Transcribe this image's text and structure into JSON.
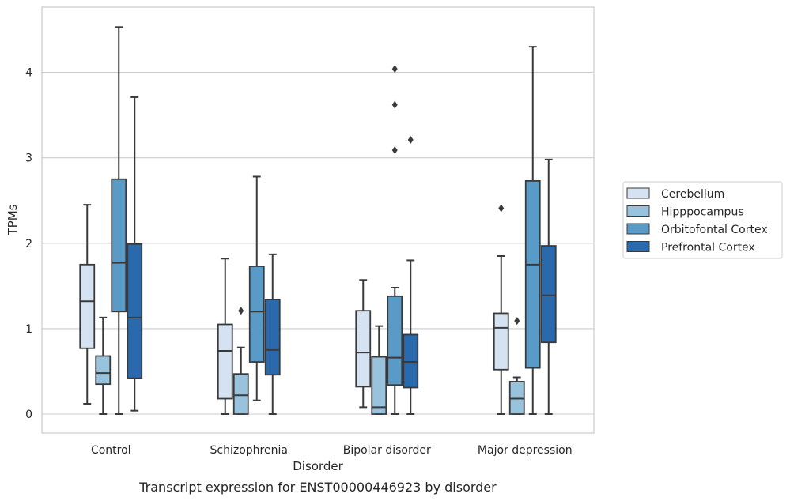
{
  "caption": "Transcript expression for ENST00000446923 by disorder",
  "chart_data": {
    "type": "box",
    "xlabel": "Disorder",
    "ylabel": "TPMs",
    "ylim": [
      -0.22,
      4.77
    ],
    "yticks": [
      0,
      1,
      2,
      3,
      4
    ],
    "grid": "horizontal",
    "legend_position": "right",
    "categories": [
      "Control",
      "Schizophrenia",
      "Bipolar disorder",
      "Major depression"
    ],
    "series": [
      {
        "name": "Cerebellum",
        "color": "#d4e2f2",
        "boxes": [
          {
            "whislo": 0.12,
            "q1": 0.77,
            "med": 1.32,
            "q3": 1.75,
            "whishi": 2.45,
            "fliers": []
          },
          {
            "whislo": 0.0,
            "q1": 0.18,
            "med": 0.74,
            "q3": 1.05,
            "whishi": 1.82,
            "fliers": []
          },
          {
            "whislo": 0.08,
            "q1": 0.32,
            "med": 0.72,
            "q3": 1.21,
            "whishi": 1.57,
            "fliers": []
          },
          {
            "whislo": 0.0,
            "q1": 0.52,
            "med": 1.01,
            "q3": 1.18,
            "whishi": 1.85,
            "fliers": [
              2.41
            ]
          }
        ]
      },
      {
        "name": "Hipppocampus",
        "color": "#99c2dd",
        "boxes": [
          {
            "whislo": 0.0,
            "q1": 0.35,
            "med": 0.48,
            "q3": 0.68,
            "whishi": 1.13,
            "fliers": []
          },
          {
            "whislo": 0.0,
            "q1": 0.0,
            "med": 0.22,
            "q3": 0.47,
            "whishi": 0.78,
            "fliers": [
              1.21
            ]
          },
          {
            "whislo": 0.0,
            "q1": 0.0,
            "med": 0.08,
            "q3": 0.67,
            "whishi": 1.03,
            "fliers": []
          },
          {
            "whislo": 0.0,
            "q1": 0.0,
            "med": 0.18,
            "q3": 0.38,
            "whishi": 0.43,
            "fliers": [
              1.09
            ]
          }
        ]
      },
      {
        "name": "Orbitofontal Cortex",
        "color": "#5a9ac6",
        "boxes": [
          {
            "whislo": 0.0,
            "q1": 1.2,
            "med": 1.77,
            "q3": 2.75,
            "whishi": 4.53,
            "fliers": []
          },
          {
            "whislo": 0.16,
            "q1": 0.61,
            "med": 1.2,
            "q3": 1.73,
            "whishi": 2.78,
            "fliers": []
          },
          {
            "whislo": 0.0,
            "q1": 0.34,
            "med": 0.66,
            "q3": 1.38,
            "whishi": 1.48,
            "fliers": [
              3.09,
              3.62,
              4.04
            ]
          },
          {
            "whislo": 0.0,
            "q1": 0.54,
            "med": 1.75,
            "q3": 2.73,
            "whishi": 4.3,
            "fliers": []
          }
        ]
      },
      {
        "name": "Prefrontal Cortex",
        "color": "#2a6aac",
        "boxes": [
          {
            "whislo": 0.04,
            "q1": 0.42,
            "med": 1.13,
            "q3": 1.99,
            "whishi": 3.71,
            "fliers": []
          },
          {
            "whislo": 0.0,
            "q1": 0.46,
            "med": 0.75,
            "q3": 1.34,
            "whishi": 1.87,
            "fliers": []
          },
          {
            "whislo": 0.0,
            "q1": 0.31,
            "med": 0.61,
            "q3": 0.93,
            "whishi": 1.8,
            "fliers": [
              3.21
            ]
          },
          {
            "whislo": 0.0,
            "q1": 0.84,
            "med": 1.39,
            "q3": 1.97,
            "whishi": 2.98,
            "fliers": []
          }
        ]
      }
    ]
  }
}
